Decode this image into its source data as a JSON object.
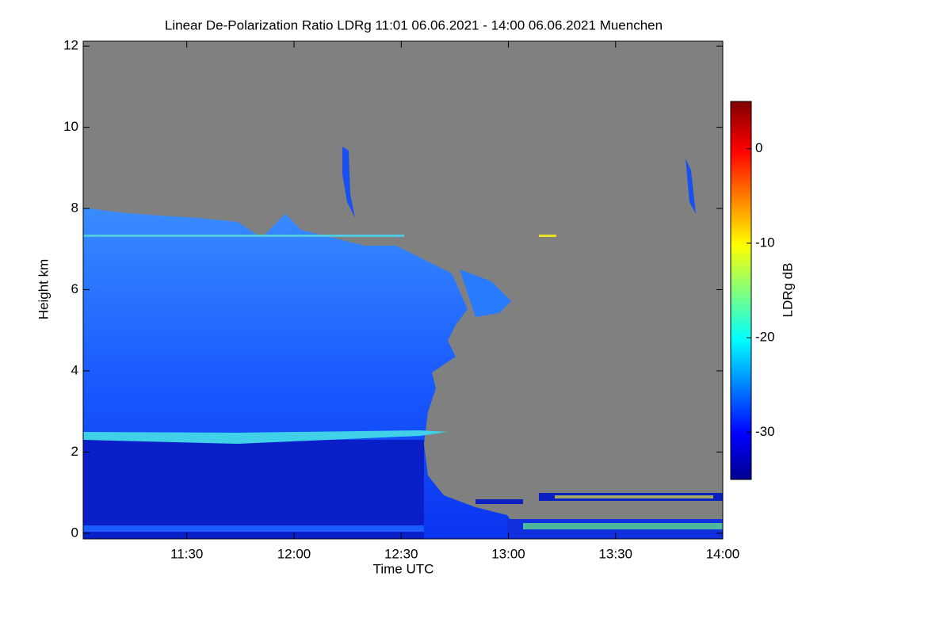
{
  "chart_data": {
    "type": "heatmap",
    "title": "Linear De-Polarization Ratio LDRg   11:01 06.06.2021 - 14:00 06.06.2021 Muenchen",
    "x_label": "Time UTC",
    "y_label": "Height km",
    "colorbar_label": "LDRg dB",
    "xlim": [
      11.0167,
      14.0
    ],
    "xticks": [
      {
        "value": 11.5,
        "label": "11:30"
      },
      {
        "value": 12.0,
        "label": "12:00"
      },
      {
        "value": 12.5,
        "label": "12:30"
      },
      {
        "value": 13.0,
        "label": "13:00"
      },
      {
        "value": 13.5,
        "label": "13:30"
      },
      {
        "value": 14.0,
        "label": "14:00"
      }
    ],
    "ylim": [
      -0.14,
      12.12
    ],
    "yticks": [
      0,
      2,
      4,
      6,
      8,
      10,
      12
    ],
    "clim": [
      -35,
      5
    ],
    "cticks": [
      0,
      -10,
      -20,
      -30
    ]
  }
}
